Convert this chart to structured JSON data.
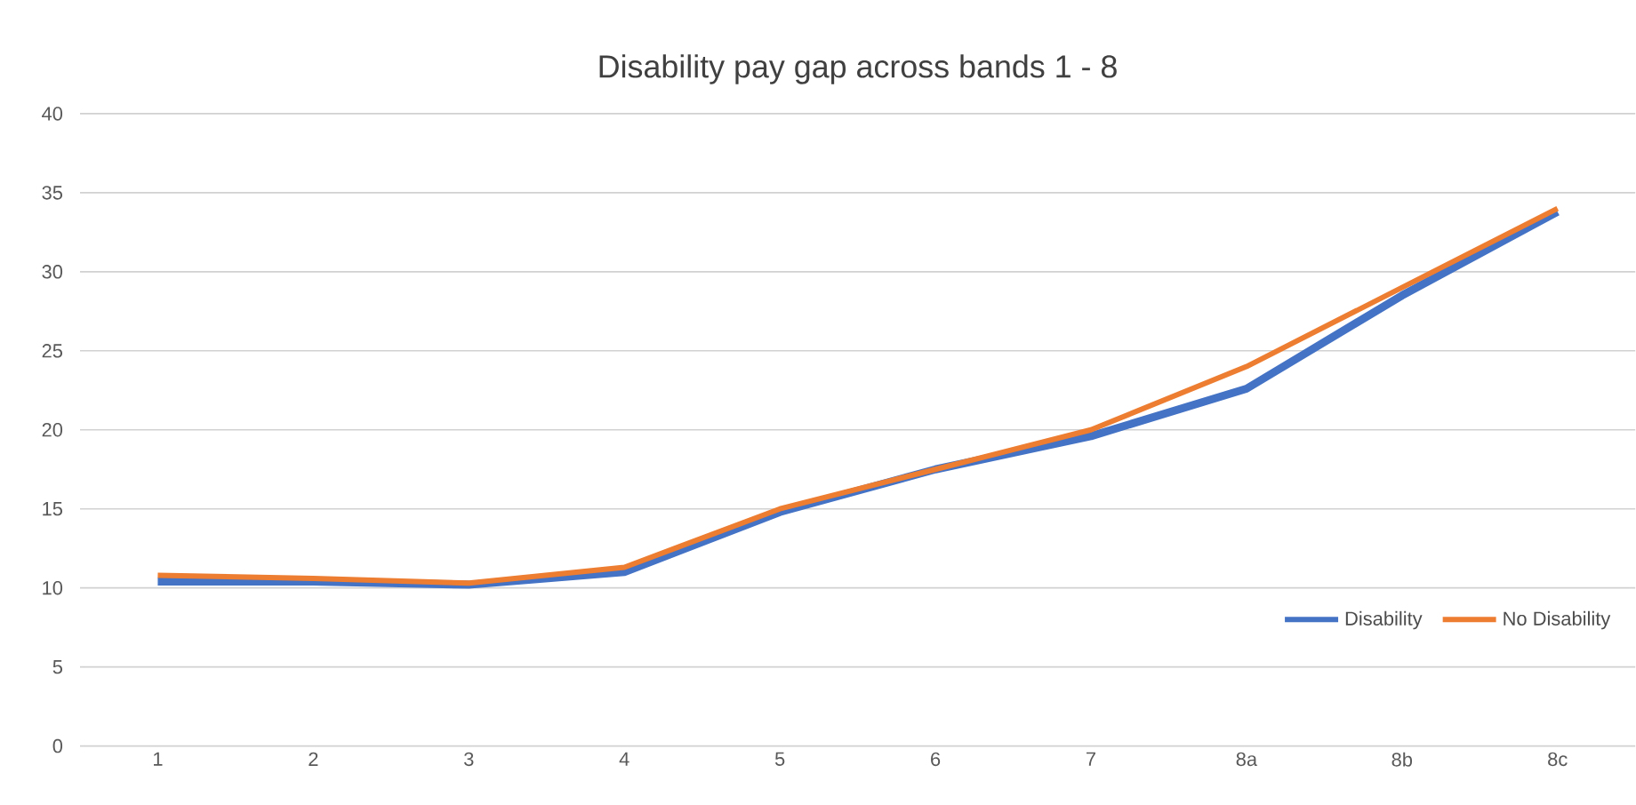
{
  "chart_data": {
    "type": "line",
    "title": "Disability pay gap across bands 1 - 8",
    "categories": [
      "1",
      "2",
      "3",
      "4",
      "5",
      "6",
      "7",
      "8a",
      "8b",
      "8c"
    ],
    "series": [
      {
        "name": "Disability",
        "color": "#4472c4",
        "values": [
          10.4,
          10.4,
          10.2,
          11.0,
          14.8,
          17.5,
          19.6,
          22.6,
          28.5,
          33.8
        ]
      },
      {
        "name": "No Disability",
        "color": "#ed7d31",
        "values": [
          10.8,
          10.6,
          10.3,
          11.3,
          15.0,
          17.5,
          20.0,
          24.0,
          29.0,
          34.0
        ]
      }
    ],
    "ylim": [
      0,
      40
    ],
    "yticks": [
      0,
      5,
      10,
      15,
      20,
      25,
      30,
      35,
      40
    ],
    "grid": "y",
    "legend": "bottom right",
    "marker": "none",
    "line_style": "solid"
  }
}
